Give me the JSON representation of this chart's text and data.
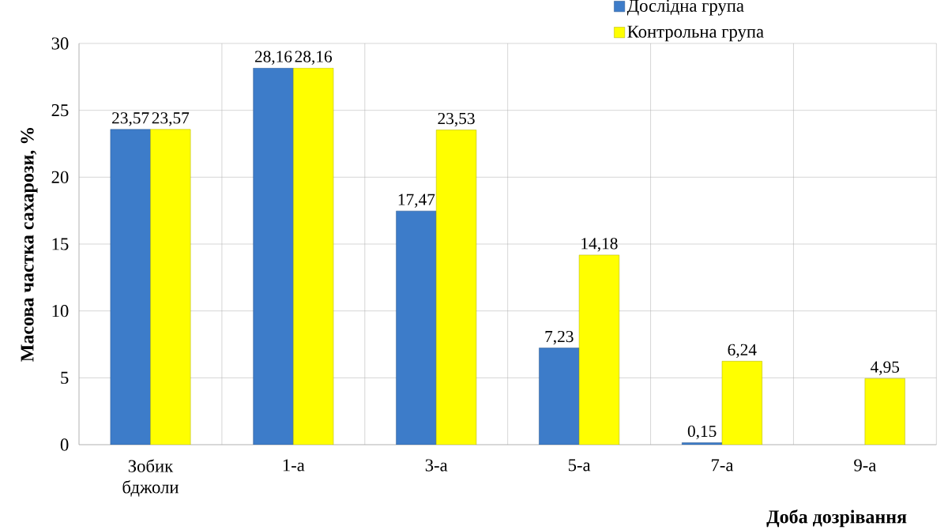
{
  "chart_data": {
    "type": "bar",
    "xlabel": "Доба дозрівання",
    "ylabel": "Масова частка сахарози, %",
    "categories": [
      "Зобик бджоли",
      "1-а",
      "3-а",
      "5-а",
      "7-а",
      "9-а"
    ],
    "series": [
      {
        "name": "Дослідна група",
        "color": "#3d7cc9",
        "values": [
          23.57,
          28.16,
          17.47,
          7.23,
          0.15,
          null
        ],
        "value_labels": [
          "23,57",
          "28,16",
          "17,47",
          "7,23",
          "0,15",
          null
        ]
      },
      {
        "name": "Контрольна група",
        "color": "#ffff00",
        "values": [
          23.57,
          28.16,
          23.53,
          14.18,
          6.24,
          4.95
        ],
        "value_labels": [
          "23,57",
          "28,16",
          "23,53",
          "14,18",
          "6,24",
          "4,95"
        ]
      }
    ],
    "ylim": [
      0,
      30
    ],
    "yticks": [
      0,
      5,
      10,
      15,
      20,
      25,
      30
    ],
    "grid": true,
    "legend": "top right"
  }
}
